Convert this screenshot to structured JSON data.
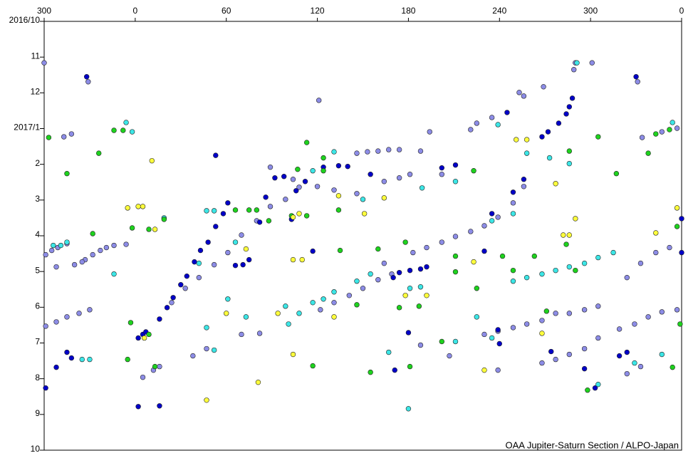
{
  "chart_data": {
    "type": "scatter",
    "credit": "OAA Jupiter-Saturn Section / ALPO-Japan",
    "xlim": [
      -60,
      360
    ],
    "xticks": [
      {
        "value": -60,
        "label": "300"
      },
      0,
      60,
      120,
      180,
      240,
      300,
      {
        "value": 360,
        "label": "0"
      }
    ],
    "ylim": [
      0,
      12
    ],
    "y_inverted": true,
    "yticks": [
      {
        "value": 0,
        "label": "2016/10"
      },
      {
        "value": 1,
        "label": "11"
      },
      {
        "value": 2,
        "label": "12"
      },
      {
        "value": 3,
        "label": "2017/1"
      },
      {
        "value": 4,
        "label": "2"
      },
      {
        "value": 5,
        "label": "3"
      },
      {
        "value": 6,
        "label": "4"
      },
      {
        "value": 7,
        "label": "5"
      },
      {
        "value": 8,
        "label": "6"
      },
      {
        "value": 9,
        "label": "7"
      },
      {
        "value": 10,
        "label": "8"
      },
      {
        "value": 11,
        "label": "9"
      },
      {
        "value": 12,
        "label": "10"
      }
    ],
    "series": [
      {
        "color": "#8c8ce6",
        "x": [
          -60,
          -59,
          -55,
          -51,
          -45,
          -33,
          -28,
          -23,
          -19,
          -14,
          -6,
          -59,
          -52,
          -45,
          -37,
          -30,
          -52,
          -40,
          -35,
          -47,
          -42,
          -31,
          24,
          33,
          42,
          52,
          61,
          70,
          80,
          89,
          99,
          108,
          121,
          89,
          104,
          120,
          131,
          146,
          146,
          153,
          160,
          167,
          174,
          188,
          194,
          164,
          174,
          181,
          202,
          221,
          225,
          235,
          253,
          256,
          269,
          289,
          290,
          301,
          331,
          334,
          347,
          357,
          122,
          131,
          141,
          150,
          160,
          169,
          164,
          183,
          192,
          202,
          211,
          221,
          230,
          239,
          249,
          256,
          230,
          239,
          249,
          258,
          268,
          277,
          286,
          296,
          305,
          319,
          329,
          338,
          347,
          357,
          324,
          333,
          343,
          352,
          268,
          277,
          286,
          296,
          305,
          324,
          333,
          38,
          47,
          5,
          12,
          16,
          70,
          82,
          188,
          207,
          239
        ],
        "values": [
          1.16,
          6.53,
          6.41,
          6.33,
          6.22,
          6.67,
          6.53,
          6.41,
          6.33,
          6.27,
          6.24,
          8.53,
          8.41,
          8.27,
          8.17,
          8.07,
          6.87,
          6.81,
          6.73,
          3.23,
          3.15,
          1.69,
          7.87,
          7.47,
          7.17,
          6.81,
          6.47,
          5.98,
          5.58,
          5.18,
          4.98,
          4.64,
          2.21,
          4.08,
          4.42,
          4.62,
          4.72,
          4.82,
          3.69,
          3.65,
          3.63,
          3.59,
          3.59,
          3.63,
          3.09,
          4.48,
          4.38,
          4.28,
          4.28,
          3.03,
          2.85,
          2.69,
          1.99,
          2.09,
          1.83,
          1.35,
          1.16,
          1.16,
          1.69,
          3.25,
          3.09,
          2.99,
          8.07,
          7.87,
          7.67,
          7.47,
          7.23,
          7.07,
          6.77,
          6.47,
          6.33,
          6.18,
          6.02,
          5.88,
          5.72,
          5.48,
          5.08,
          4.62,
          8.76,
          8.67,
          8.57,
          8.47,
          8.37,
          8.17,
          8.17,
          8.07,
          7.97,
          8.61,
          8.47,
          8.27,
          8.13,
          8.07,
          7.17,
          6.77,
          6.47,
          6.33,
          9.56,
          9.46,
          9.32,
          9.16,
          8.86,
          9.86,
          9.66,
          9.36,
          9.16,
          9.96,
          9.76,
          9.66,
          8.76,
          8.73,
          9.06,
          9.36,
          9.76
        ]
      },
      {
        "color": "#0000c8",
        "x": [
          -32,
          -59,
          -52,
          -45,
          -42,
          53,
          2,
          16,
          2,
          5,
          7,
          16,
          21,
          25,
          30,
          34,
          39,
          43,
          48,
          53,
          58,
          61,
          66,
          71,
          75,
          82,
          86,
          92,
          98,
          103,
          106,
          112,
          117,
          124,
          134,
          140,
          155,
          170,
          174,
          181,
          188,
          192,
          202,
          211,
          230,
          239,
          245,
          256,
          268,
          272,
          279,
          284,
          286,
          288,
          296,
          303,
          319,
          330,
          324,
          360,
          360,
          171,
          180,
          274,
          240,
          235,
          249
        ],
        "values": [
          1.55,
          10.26,
          9.68,
          9.26,
          9.42,
          3.75,
          10.78,
          10.76,
          8.86,
          8.76,
          8.69,
          8.33,
          8.01,
          7.73,
          7.37,
          7.13,
          6.73,
          6.41,
          6.18,
          5.74,
          5.38,
          5.08,
          6.83,
          6.81,
          6.67,
          5.62,
          4.92,
          4.38,
          4.34,
          5.54,
          4.74,
          4.48,
          6.43,
          4.08,
          4.04,
          4.06,
          4.28,
          7.17,
          7.03,
          6.97,
          6.93,
          6.87,
          4.1,
          4.02,
          6.43,
          8.63,
          2.55,
          4.42,
          3.23,
          3.09,
          2.85,
          2.59,
          2.39,
          2.15,
          9.72,
          10.26,
          9.36,
          1.55,
          9.26,
          6.47,
          5.52,
          9.76,
          8.71,
          9.24,
          9.02,
          5.38,
          4.78
        ]
      },
      {
        "color": "#3ce6e6",
        "x": [
          -54,
          -49,
          -45,
          -35,
          -30,
          -14,
          -6,
          -2,
          19,
          47,
          52,
          42,
          47,
          52,
          61,
          66,
          73,
          99,
          101,
          108,
          117,
          124,
          131,
          146,
          155,
          167,
          180,
          181,
          188,
          211,
          225,
          235,
          249,
          258,
          268,
          277,
          286,
          296,
          305,
          315,
          239,
          258,
          273,
          286,
          291,
          329,
          305,
          347,
          354,
          131,
          117,
          150,
          189,
          211,
          235,
          249
        ],
        "values": [
          6.27,
          6.27,
          6.18,
          9.46,
          9.46,
          7.07,
          2.83,
          3.09,
          5.5,
          5.3,
          5.3,
          6.77,
          8.57,
          9.2,
          7.77,
          6.18,
          8.27,
          7.97,
          8.47,
          8.17,
          7.87,
          7.77,
          7.57,
          7.27,
          7.07,
          9.26,
          10.84,
          7.47,
          7.43,
          8.96,
          8.27,
          8.86,
          7.27,
          7.17,
          7.07,
          6.97,
          6.87,
          6.77,
          6.61,
          6.47,
          2.89,
          3.69,
          3.82,
          3.98,
          1.16,
          9.56,
          10.16,
          9.32,
          2.83,
          3.65,
          4.18,
          4.98,
          4.66,
          4.48,
          5.58,
          5.38
        ]
      },
      {
        "color": "#1ed21e",
        "x": [
          -57,
          -45,
          -28,
          -24,
          -14,
          -8,
          -5,
          -3,
          -2,
          9,
          9,
          13,
          19,
          66,
          75,
          80,
          88,
          103,
          113,
          113,
          124,
          124,
          134,
          135,
          146,
          155,
          160,
          174,
          178,
          181,
          187,
          202,
          211,
          211,
          223,
          225,
          242,
          249,
          263,
          271,
          284,
          286,
          290,
          305,
          317,
          338,
          343,
          352,
          354,
          357,
          359,
          298,
          117,
          107
        ],
        "values": [
          3.25,
          4.26,
          5.94,
          3.69,
          3.05,
          3.05,
          9.46,
          8.43,
          5.78,
          8.76,
          5.82,
          9.66,
          5.54,
          5.28,
          5.28,
          5.28,
          5.58,
          5.44,
          3.39,
          5.44,
          3.82,
          4.18,
          5.28,
          6.41,
          7.93,
          9.82,
          6.37,
          8.01,
          6.18,
          9.66,
          7.97,
          8.96,
          6.57,
          7.01,
          4.18,
          7.47,
          6.57,
          6.97,
          6.57,
          8.11,
          6.24,
          3.63,
          6.97,
          3.23,
          4.26,
          3.69,
          3.15,
          3.03,
          9.68,
          5.74,
          8.47,
          10.32,
          9.64,
          4.14
        ]
      },
      {
        "color": "#ffff3c",
        "x": [
          -5,
          2,
          5,
          11,
          13,
          6,
          47,
          60,
          73,
          81,
          94,
          104,
          108,
          104,
          110,
          104,
          134,
          131,
          151,
          164,
          178,
          192,
          223,
          230,
          258,
          268,
          277,
          282,
          286,
          290,
          343,
          357,
          251
        ],
        "values": [
          5.22,
          5.18,
          5.18,
          3.9,
          5.82,
          8.86,
          10.6,
          8.17,
          6.37,
          10.1,
          8.17,
          5.48,
          5.38,
          6.67,
          6.67,
          9.32,
          4.88,
          8.27,
          5.38,
          4.94,
          7.67,
          7.67,
          6.73,
          9.76,
          3.31,
          8.73,
          4.54,
          5.98,
          5.98,
          5.52,
          5.92,
          5.22,
          3.31
        ]
      }
    ]
  }
}
